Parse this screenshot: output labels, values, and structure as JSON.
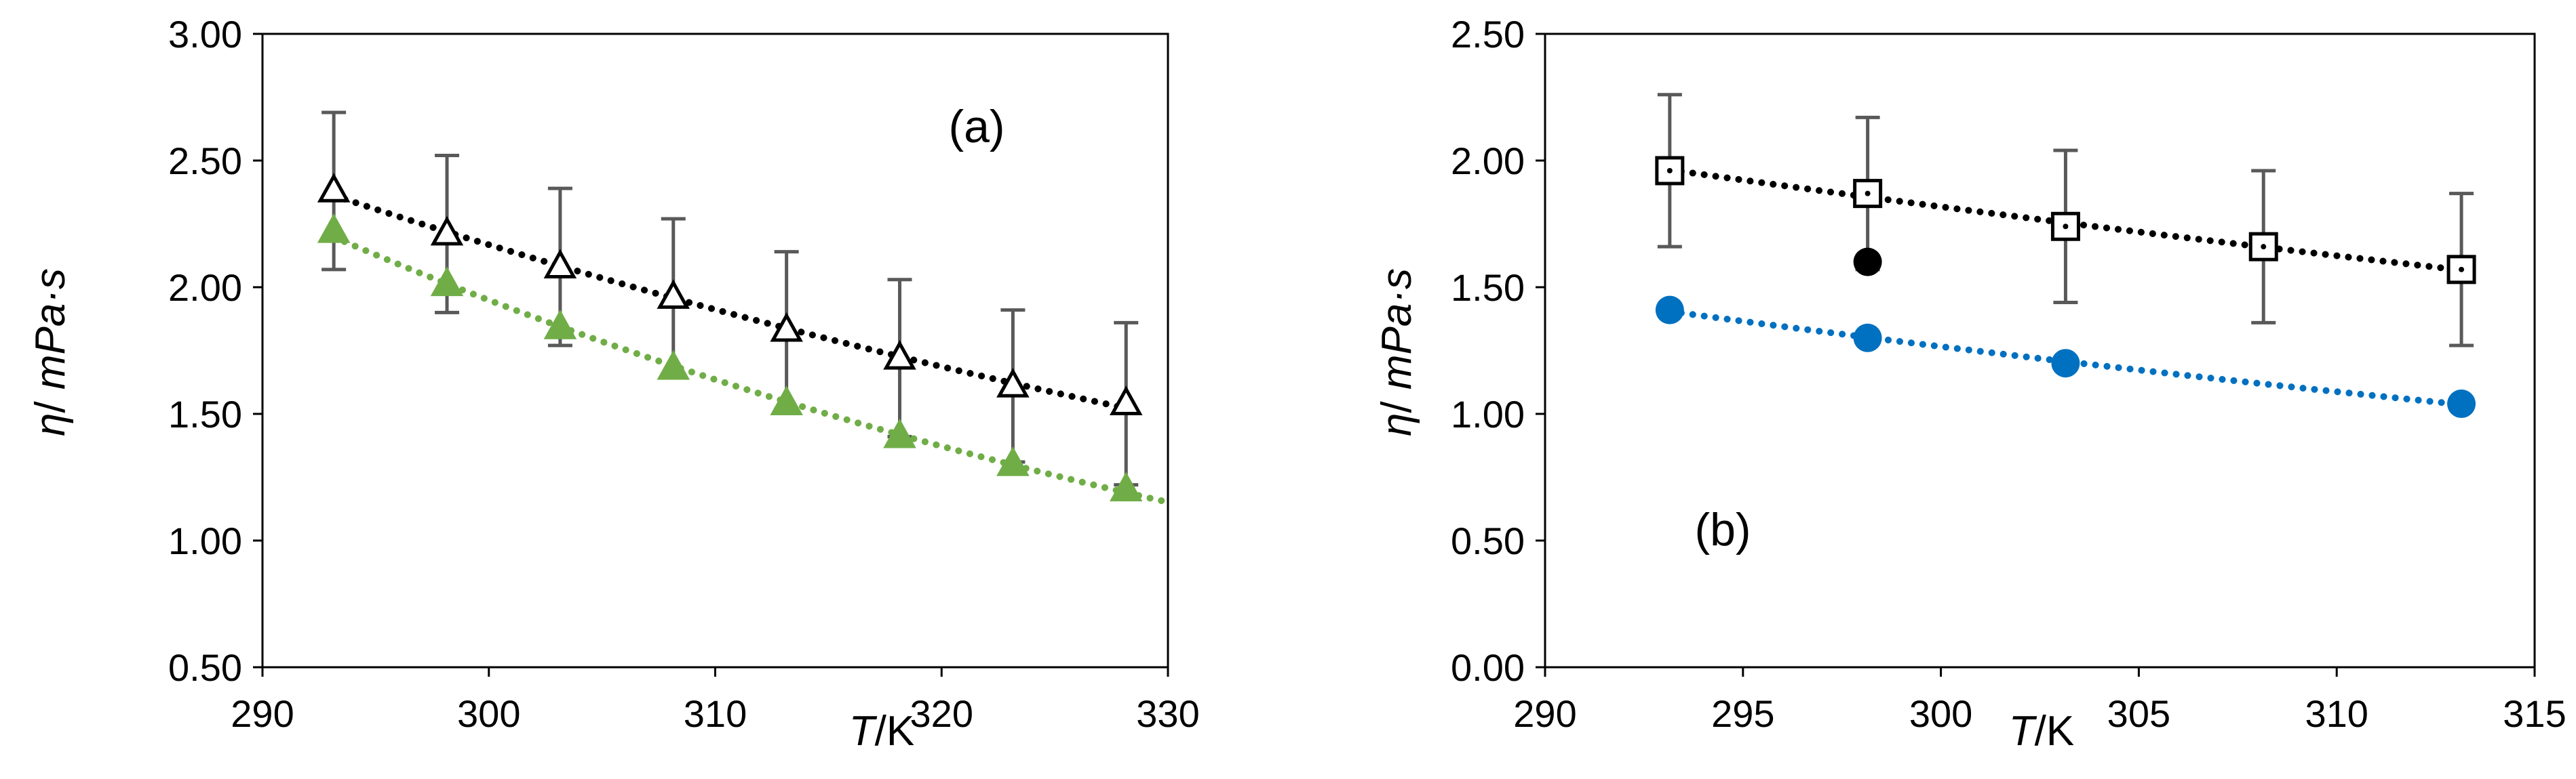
{
  "chart_data": [
    {
      "type": "scatter",
      "panel_label": "(a)",
      "xlabel_italic": "T",
      "xlabel_unit": "/K",
      "ylabel_symbol": "η",
      "ylabel_slash": "/ ",
      "ylabel_unit": "mPa·s",
      "xlim": [
        290,
        330
      ],
      "ylim": [
        0.5,
        3.0
      ],
      "x_ticks": [
        290,
        300,
        310,
        320,
        330
      ],
      "x_tick_labels": [
        "290",
        "300",
        "310",
        "320",
        "330"
      ],
      "y_ticks": [
        0.5,
        1.0,
        1.5,
        2.0,
        2.5,
        3.0
      ],
      "y_tick_labels": [
        "0.50",
        "1.00",
        "1.50",
        "2.00",
        "2.50",
        "3.00"
      ],
      "grid": false,
      "series": [
        {
          "name": "open triangles",
          "marker": "triangle-open",
          "color": "#000000",
          "x": [
            293.15,
            298.15,
            303.15,
            308.15,
            313.15,
            318.15,
            323.15,
            328.15
          ],
          "y": [
            2.38,
            2.21,
            2.08,
            1.96,
            1.83,
            1.72,
            1.61,
            1.54
          ],
          "error": [
            0.31,
            0.31,
            0.31,
            0.31,
            0.31,
            0.31,
            0.3,
            0.32
          ],
          "trendline": {
            "style": "dotted",
            "color": "#000000",
            "x_range": [
              293.15,
              328.15
            ]
          }
        },
        {
          "name": "green triangles",
          "marker": "triangle-filled",
          "color": "#70ad47",
          "x": [
            293.15,
            298.15,
            303.15,
            308.15,
            313.15,
            318.15,
            323.15,
            328.15
          ],
          "y": [
            2.22,
            2.01,
            1.84,
            1.68,
            1.54,
            1.41,
            1.3,
            1.2
          ],
          "trendline": {
            "style": "dotted",
            "color": "#70ad47",
            "x_range": [
              293.15,
              330
            ]
          }
        }
      ]
    },
    {
      "type": "scatter",
      "panel_label": "(b)",
      "xlabel_italic": "T",
      "xlabel_unit": "/K",
      "ylabel_symbol": "η",
      "ylabel_slash": "/ ",
      "ylabel_unit": "mPa·s",
      "xlim": [
        290,
        315
      ],
      "ylim": [
        0.0,
        2.5
      ],
      "x_ticks": [
        290,
        295,
        300,
        305,
        310,
        315
      ],
      "x_tick_labels": [
        "290",
        "295",
        "300",
        "305",
        "310",
        "315"
      ],
      "y_ticks": [
        0.0,
        0.5,
        1.0,
        1.5,
        2.0,
        2.5
      ],
      "y_tick_labels": [
        "0.00",
        "0.50",
        "1.00",
        "1.50",
        "2.00",
        "2.50"
      ],
      "grid": false,
      "series": [
        {
          "name": "open squares",
          "marker": "square-open",
          "color": "#000000",
          "x": [
            293.15,
            298.15,
            303.15,
            308.15,
            313.15
          ],
          "y": [
            1.96,
            1.87,
            1.74,
            1.66,
            1.57
          ],
          "error": [
            0.3,
            0.3,
            0.3,
            0.3,
            0.3
          ],
          "trendline": {
            "style": "dotted",
            "color": "#000000",
            "x_range": [
              293.15,
              313.15
            ]
          }
        },
        {
          "name": "blue circles",
          "marker": "circle-filled",
          "color": "#0070c0",
          "x": [
            293.15,
            298.15,
            303.15,
            313.15
          ],
          "y": [
            1.41,
            1.3,
            1.2,
            1.04
          ],
          "trendline": {
            "style": "dotted",
            "color": "#0070c0",
            "x_range": [
              293.15,
              313.15
            ]
          }
        },
        {
          "name": "black circle",
          "marker": "circle-filled",
          "color": "#000000",
          "x": [
            298.15
          ],
          "y": [
            1.6
          ]
        }
      ]
    }
  ]
}
